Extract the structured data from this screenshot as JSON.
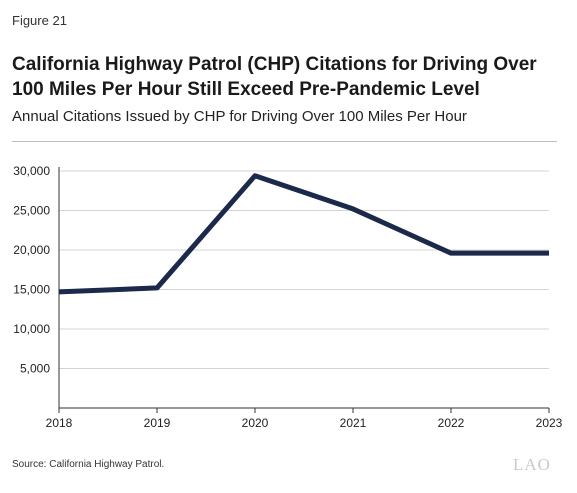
{
  "figure_label": "Figure 21",
  "title": "California Highway Patrol (CHP) Citations for Driving Over 100 Miles Per Hour Still Exceed Pre-Pandemic Level",
  "subtitle": "Annual Citations Issued by CHP for Driving Over 100 Miles Per Hour",
  "source": "Source: California Highway Patrol.",
  "logo_text": "LAO",
  "colors": {
    "line": "#1b2a4a",
    "grid": "#d4d4d4",
    "axis": "#333333"
  },
  "chart_data": {
    "type": "line",
    "x": [
      "2018",
      "2019",
      "2020",
      "2021",
      "2022",
      "2023"
    ],
    "series": [
      {
        "values": [
          14700,
          15200,
          29400,
          25200,
          19600,
          19600
        ]
      }
    ],
    "ylim": [
      0,
      30000
    ],
    "yticks": [
      5000,
      10000,
      15000,
      20000,
      25000,
      30000
    ],
    "ytick_labels": [
      "5,000",
      "10,000",
      "15,000",
      "20,000",
      "25,000",
      "30,000"
    ],
    "grid": true,
    "title": "",
    "xlabel": "",
    "ylabel": ""
  }
}
